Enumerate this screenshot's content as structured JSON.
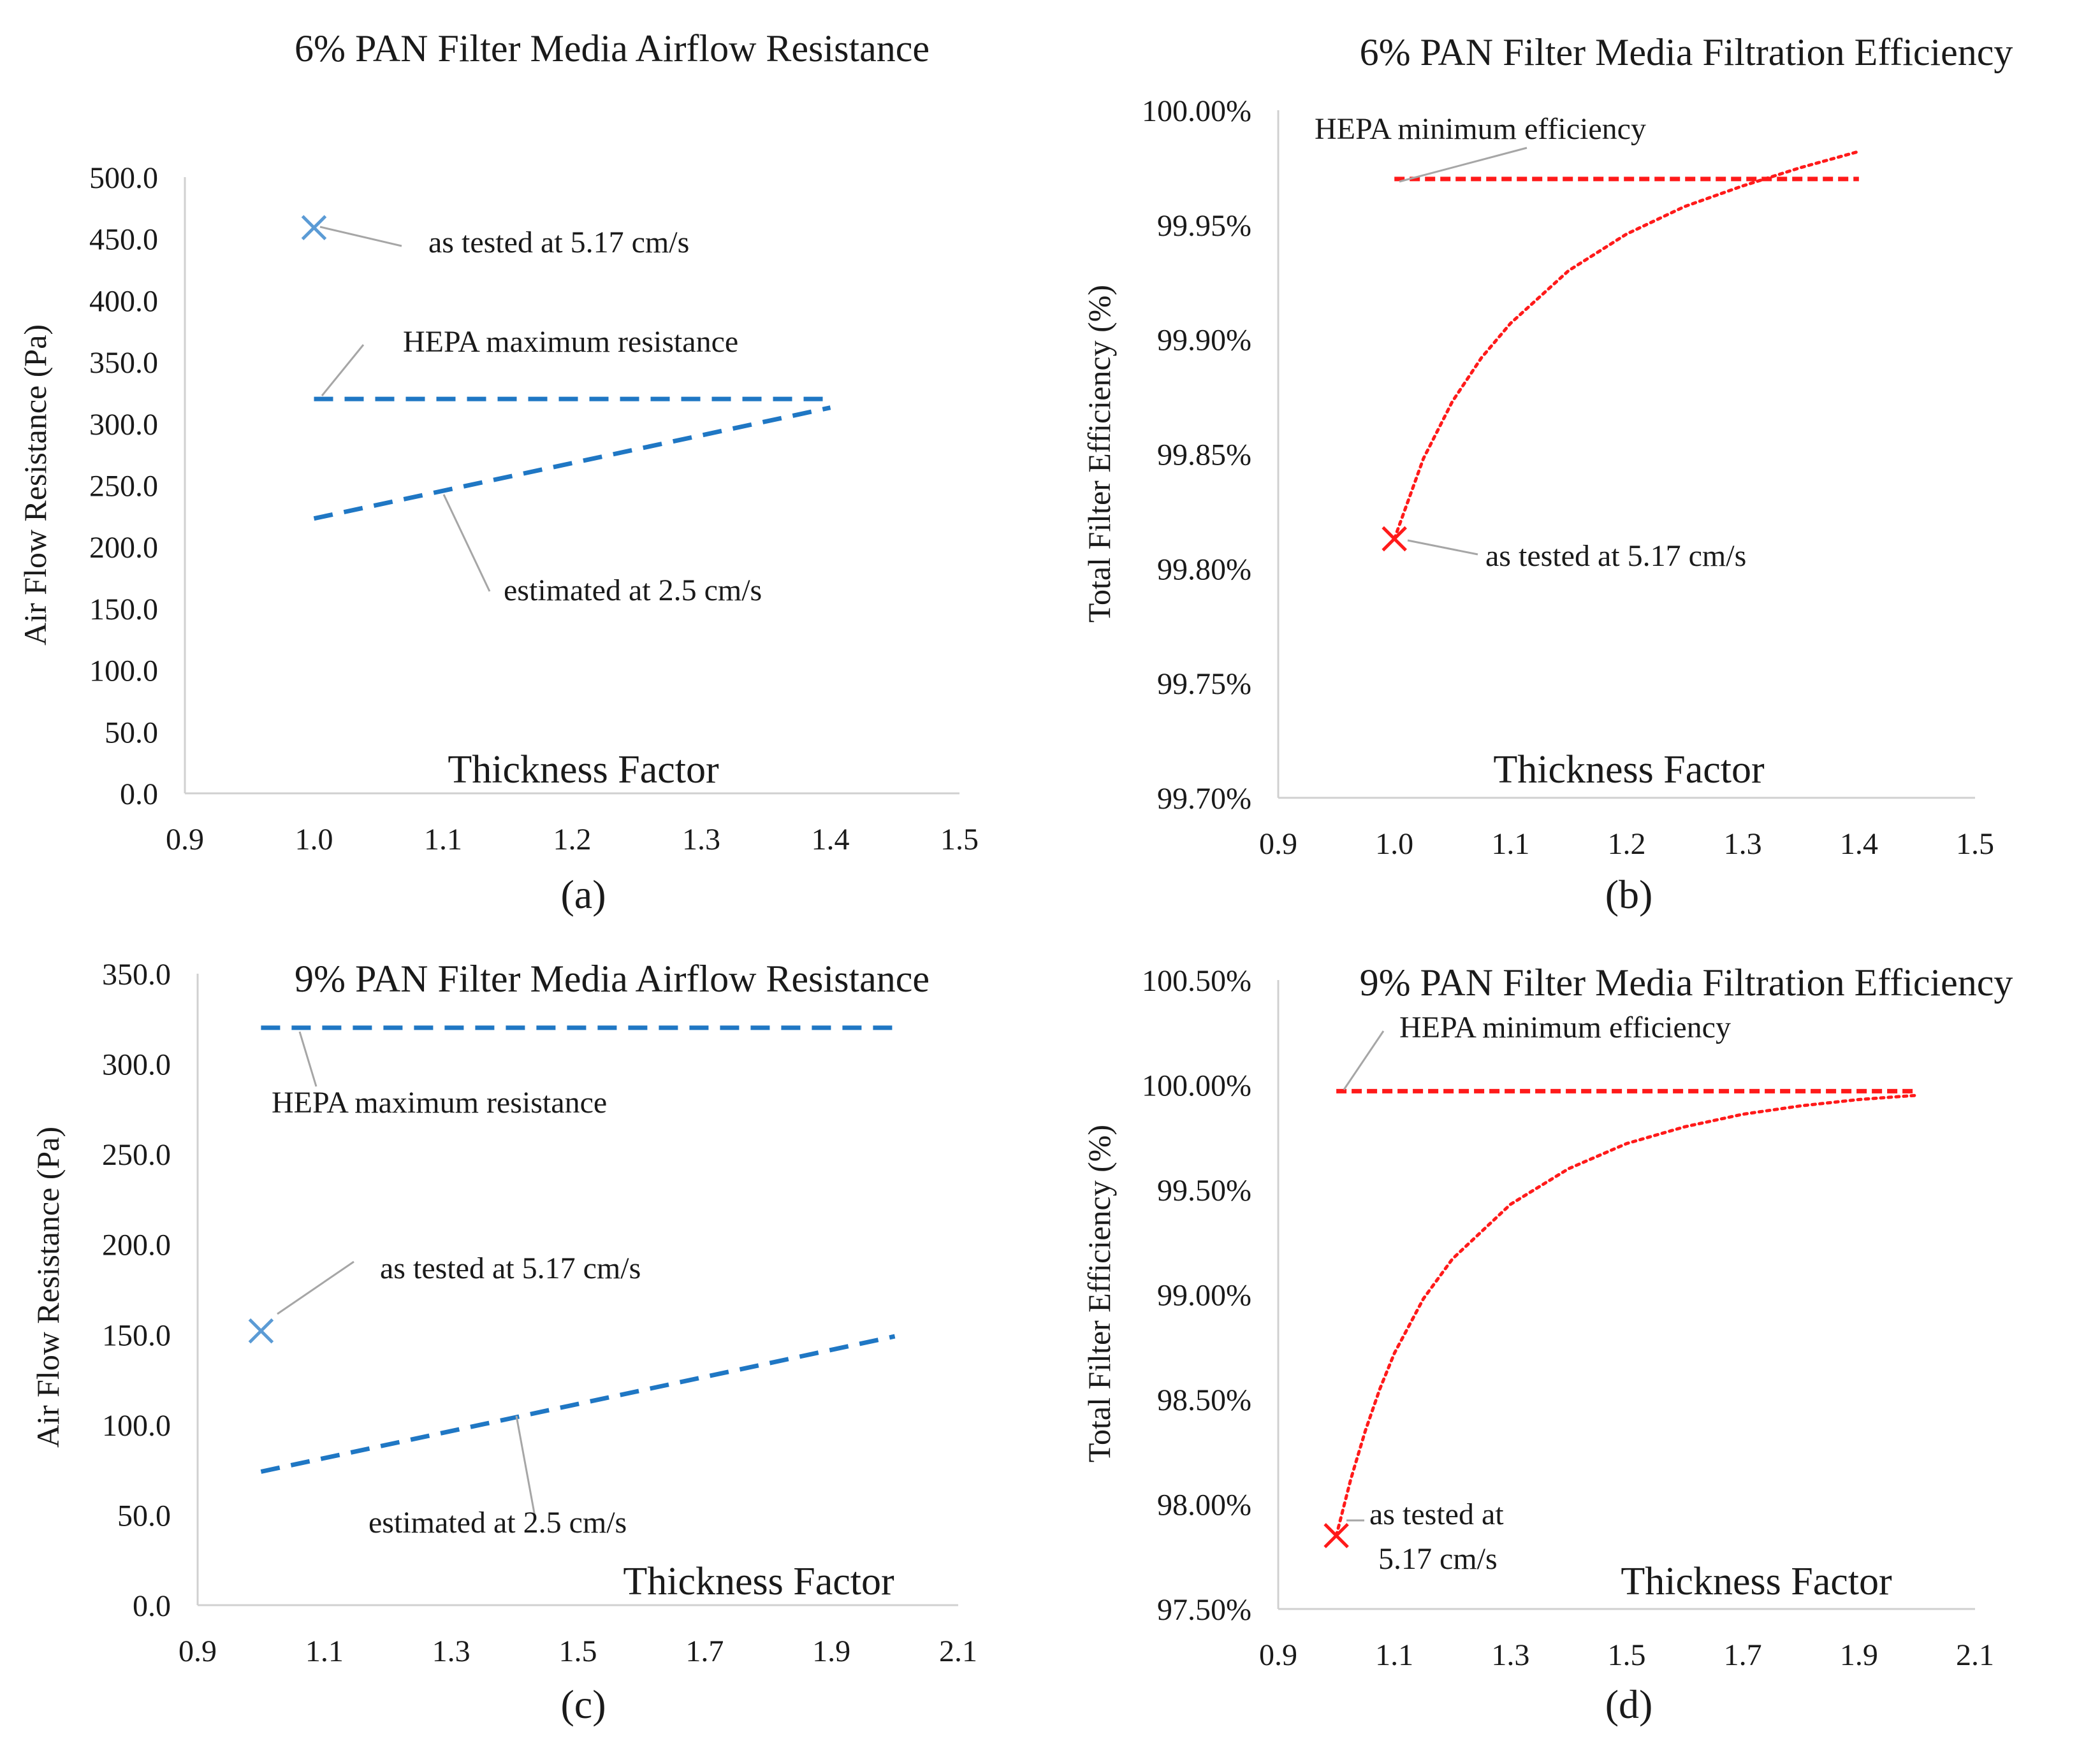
{
  "colors": {
    "blue": "#1f77c4",
    "blue_marker": "#5b9bd5",
    "red": "#ff1a1a",
    "axis": "#d0d0d0",
    "text": "#1a1a1a",
    "leader": "#a6a6a6"
  },
  "chart_data": [
    {
      "id": "a",
      "type": "line",
      "panel_label": "(a)",
      "title": "6% PAN Filter Media Airflow Resistance",
      "xlabel": "Thickness Factor",
      "ylabel": "Air Flow Resistance (Pa)",
      "xlim": [
        0.9,
        1.5
      ],
      "ylim": [
        0,
        500
      ],
      "xticks": [
        "0.9",
        "1.0",
        "1.1",
        "1.2",
        "1.3",
        "1.4",
        "1.5"
      ],
      "yticks": [
        "0.0",
        "50.0",
        "100.0",
        "150.0",
        "200.0",
        "250.0",
        "300.0",
        "350.0",
        "400.0",
        "450.0",
        "500.0"
      ],
      "series": [
        {
          "name": "HEPA maximum resistance",
          "style": "dashed",
          "color": "blue",
          "x": [
            1.0,
            1.4
          ],
          "y": [
            320,
            320
          ]
        },
        {
          "name": "estimated at 2.5 cm/s",
          "style": "dashed",
          "color": "blue",
          "x": [
            1.0,
            1.4
          ],
          "y": [
            223,
            313
          ]
        },
        {
          "name": "as tested at 5.17 cm/s",
          "style": "marker",
          "color": "blue_marker",
          "x": [
            1.0
          ],
          "y": [
            459
          ]
        }
      ],
      "annotations": [
        {
          "text": "as tested at 5.17 cm/s"
        },
        {
          "text": "HEPA maximum resistance"
        },
        {
          "text": "estimated at 2.5 cm/s"
        }
      ]
    },
    {
      "id": "b",
      "type": "line",
      "panel_label": "(b)",
      "title": "6% PAN Filter Media Filtration Efficiency",
      "xlabel": "Thickness Factor",
      "ylabel": "Total Filter Efficiency (%)",
      "xlim": [
        0.9,
        1.5
      ],
      "ylim": [
        99.7,
        100.0
      ],
      "xticks": [
        "0.9",
        "1.0",
        "1.1",
        "1.2",
        "1.3",
        "1.4",
        "1.5"
      ],
      "yticks": [
        "99.70%",
        "99.75%",
        "99.80%",
        "99.85%",
        "99.90%",
        "99.95%",
        "100.00%"
      ],
      "series": [
        {
          "name": "HEPA minimum efficiency",
          "style": "dashed",
          "color": "red",
          "x": [
            1.0,
            1.4
          ],
          "y": [
            99.97,
            99.97
          ]
        },
        {
          "name": "Total filter efficiency",
          "style": "dotted",
          "color": "red",
          "x": [
            1.0,
            1.025,
            1.05,
            1.075,
            1.1,
            1.15,
            1.2,
            1.25,
            1.3,
            1.35,
            1.4
          ],
          "y": [
            99.813,
            99.848,
            99.873,
            99.892,
            99.907,
            99.93,
            99.946,
            99.958,
            99.967,
            99.975,
            99.982
          ]
        },
        {
          "name": "as tested at 5.17 cm/s",
          "style": "marker",
          "color": "red",
          "x": [
            1.0
          ],
          "y": [
            99.813
          ]
        }
      ],
      "annotations": [
        {
          "text": "HEPA minimum efficiency"
        },
        {
          "text": "as tested at 5.17 cm/s"
        }
      ]
    },
    {
      "id": "c",
      "type": "line",
      "panel_label": "(c)",
      "title": "9% PAN Filter Media Airflow Resistance",
      "xlabel": "Thickness Factor",
      "ylabel": "Air Flow Resistance (Pa)",
      "xlim": [
        0.9,
        2.1
      ],
      "ylim": [
        0,
        350
      ],
      "xticks": [
        "0.9",
        "1.1",
        "1.3",
        "1.5",
        "1.7",
        "1.9",
        "2.1"
      ],
      "yticks": [
        "0.0",
        "50.0",
        "100.0",
        "150.0",
        "200.0",
        "250.0",
        "300.0",
        "350.0"
      ],
      "series": [
        {
          "name": "HEPA maximum resistance",
          "style": "dashed",
          "color": "blue",
          "x": [
            1.0,
            2.0
          ],
          "y": [
            320,
            320
          ]
        },
        {
          "name": "estimated at 2.5 cm/s",
          "style": "dashed",
          "color": "blue",
          "x": [
            1.0,
            2.0
          ],
          "y": [
            74,
            149
          ]
        },
        {
          "name": "as tested at 5.17 cm/s",
          "style": "marker",
          "color": "blue_marker",
          "x": [
            1.0
          ],
          "y": [
            152
          ]
        }
      ],
      "annotations": [
        {
          "text": "HEPA maximum resistance"
        },
        {
          "text": "as tested at 5.17 cm/s"
        },
        {
          "text": "estimated at 2.5 cm/s"
        }
      ]
    },
    {
      "id": "d",
      "type": "line",
      "panel_label": "(d)",
      "title": "9% PAN Filter Media Filtration Efficiency",
      "xlabel": "Thickness Factor",
      "ylabel": "Total Filter Efficiency (%)",
      "xlim": [
        0.9,
        2.1
      ],
      "ylim": [
        97.5,
        100.5
      ],
      "xticks": [
        "0.9",
        "1.1",
        "1.3",
        "1.5",
        "1.7",
        "1.9",
        "2.1"
      ],
      "yticks": [
        "97.50%",
        "98.00%",
        "98.50%",
        "99.00%",
        "99.50%",
        "100.00%",
        "100.50%"
      ],
      "series": [
        {
          "name": "HEPA minimum efficiency",
          "style": "dashed",
          "color": "red",
          "x": [
            1.0,
            2.0
          ],
          "y": [
            99.97,
            99.97
          ]
        },
        {
          "name": "Total filter efficiency",
          "style": "dotted",
          "color": "red",
          "x": [
            1.0,
            1.025,
            1.05,
            1.075,
            1.1,
            1.15,
            1.2,
            1.3,
            1.4,
            1.5,
            1.6,
            1.7,
            1.8,
            1.9,
            2.0
          ],
          "y": [
            97.85,
            98.12,
            98.35,
            98.55,
            98.72,
            98.98,
            99.17,
            99.43,
            99.6,
            99.72,
            99.8,
            99.86,
            99.9,
            99.93,
            99.95
          ]
        },
        {
          "name": "as tested at 5.17 cm/s",
          "style": "marker",
          "color": "red",
          "x": [
            1.0
          ],
          "y": [
            97.85
          ]
        }
      ],
      "annotations": [
        {
          "text": "HEPA minimum efficiency"
        },
        {
          "text": "as tested at\n5.17 cm/s"
        }
      ]
    }
  ]
}
